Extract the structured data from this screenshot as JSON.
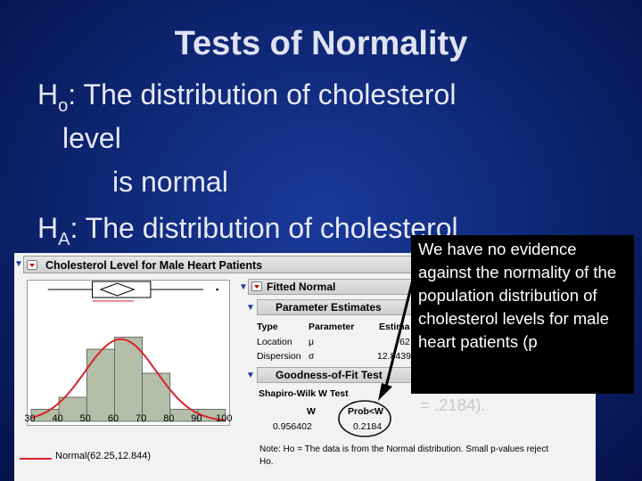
{
  "slide": {
    "title": "Tests of Normality",
    "h0_label": "H",
    "h0_sub": "o",
    "h0_line1": ":  The distribution of cholesterol",
    "h0_line2": "level",
    "h0_line3": "is normal",
    "ha_label": "H",
    "ha_sub": "A",
    "ha_text": ": The distribution of cholesterol"
  },
  "callout": {
    "text": "We have no evidence against the normality of the population distribution of cholesterol levels for male heart patients (p",
    "tail": "= .2184)."
  },
  "jmp": {
    "report_title": "Cholesterol Level for Male Heart Patients",
    "x_ticks": [
      "30",
      "40",
      "50",
      "60",
      "70",
      "80",
      "90",
      "100"
    ],
    "legend": "Normal(62.25,12.844)",
    "fitted_normal": "Fitted Normal",
    "parameter_estimates": "Parameter Estimates",
    "pe_headers": [
      "Type",
      "Parameter",
      "Estima"
    ],
    "pe_rows": [
      {
        "type": "Location",
        "param": "μ",
        "est": "62"
      },
      {
        "type": "Dispersion",
        "param": "σ",
        "est": "12.8439"
      }
    ],
    "gof": "Goodness-of-Fit Test",
    "gof_test": "Shapiro-Wilk W Test",
    "gof_headers": [
      "W",
      "Prob<W"
    ],
    "gof_values": [
      "0.956402",
      "0.2184"
    ],
    "note_line1": "Note: Ho = The data is from the Normal distribution. Small p-values reject",
    "note_line2": "Ho."
  },
  "chart_data": {
    "type": "bar",
    "categories": [
      "30-40",
      "40-50",
      "50-60",
      "60-70",
      "70-80",
      "80-90",
      "90-100"
    ],
    "values": [
      1,
      2,
      6,
      7,
      4,
      1,
      1
    ],
    "xlim": [
      30,
      100
    ],
    "ylim": [
      0,
      8
    ],
    "normal_fit": {
      "mean": 62.25,
      "sd": 12.844
    }
  },
  "colors": {
    "background": "#0d2470",
    "bars": "#b5bfa8",
    "curve": "#d9232e",
    "callout": "#000000"
  }
}
